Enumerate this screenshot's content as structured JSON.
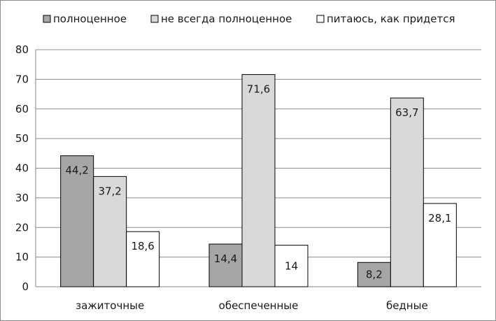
{
  "chart_data": {
    "type": "bar",
    "categories": [
      "зажиточные",
      "обеспеченные",
      "бедные"
    ],
    "series": [
      {
        "name": "полноценное",
        "values": [
          44.2,
          14.4,
          8.2
        ],
        "labels": [
          "44,2",
          "14,4",
          "8,2"
        ],
        "color": "#a6a6a6"
      },
      {
        "name": "не всегда  полноценное",
        "values": [
          37.2,
          71.6,
          63.7
        ],
        "labels": [
          "37,2",
          "71,6",
          "63,7"
        ],
        "color": "#d9d9d9"
      },
      {
        "name": "питаюсь, как придется",
        "values": [
          18.6,
          14,
          28.1
        ],
        "labels": [
          "18,6",
          "14",
          "28,1"
        ],
        "color": "#ffffff"
      }
    ],
    "ylim": [
      0,
      80
    ],
    "yticks": [
      "0",
      "10",
      "20",
      "30",
      "40",
      "50",
      "60",
      "70",
      "80"
    ],
    "grid": true,
    "legend": "top",
    "title": "",
    "xlabel": "",
    "ylabel": ""
  }
}
